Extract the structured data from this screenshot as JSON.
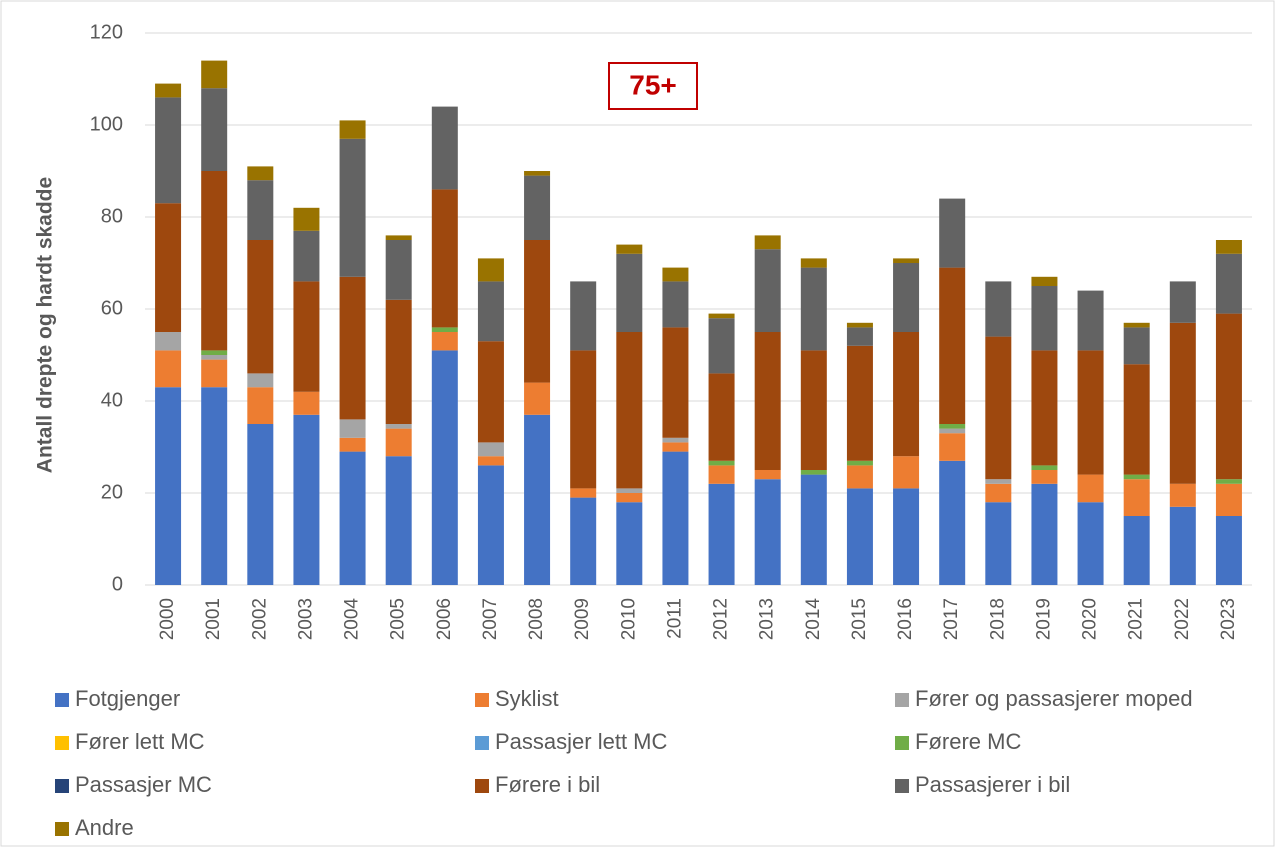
{
  "chart_data": {
    "type": "stacked_bar",
    "annotation": "75+",
    "y_label": "Antall drepte og hardt skadde",
    "categories": [
      "2000",
      "2001",
      "2002",
      "2003",
      "2004",
      "2005",
      "2006",
      "2007",
      "2008",
      "2009",
      "2010",
      "2011",
      "2012",
      "2013",
      "2014",
      "2015",
      "2016",
      "2017",
      "2018",
      "2019",
      "2020",
      "2021",
      "2022",
      "2023"
    ],
    "ylim": [
      0,
      120
    ],
    "yticks": [
      0,
      20,
      40,
      60,
      80,
      100,
      120
    ],
    "grid": true,
    "series": [
      {
        "name": "Fotgjenger",
        "color": "#4472c4",
        "values": [
          43,
          43,
          35,
          37,
          29,
          28,
          51,
          26,
          37,
          19,
          18,
          29,
          22,
          23,
          24,
          21,
          21,
          27,
          18,
          22,
          18,
          15,
          17,
          15
        ]
      },
      {
        "name": "Syklist",
        "color": "#ed7d31",
        "values": [
          8,
          6,
          8,
          5,
          3,
          6,
          4,
          2,
          7,
          2,
          2,
          2,
          4,
          2,
          0,
          5,
          7,
          6,
          4,
          3,
          6,
          8,
          5,
          7
        ]
      },
      {
        "name": "Fører og passasjerer moped",
        "color": "#a5a5a5",
        "values": [
          4,
          1,
          3,
          0,
          4,
          1,
          0,
          3,
          0,
          0,
          1,
          1,
          0,
          0,
          0,
          0,
          0,
          1,
          1,
          0,
          0,
          0,
          0,
          0
        ]
      },
      {
        "name": "Fører lett MC",
        "color": "#ffc000",
        "values": [
          0,
          0,
          0,
          0,
          0,
          0,
          0,
          0,
          0,
          0,
          0,
          0,
          0,
          0,
          0,
          0,
          0,
          0,
          0,
          0,
          0,
          0,
          0,
          0
        ]
      },
      {
        "name": "Passasjer lett MC",
        "color": "#5b9bd5",
        "values": [
          0,
          0,
          0,
          0,
          0,
          0,
          0,
          0,
          0,
          0,
          0,
          0,
          0,
          0,
          0,
          0,
          0,
          0,
          0,
          0,
          0,
          0,
          0,
          0
        ]
      },
      {
        "name": "Førere MC",
        "color": "#70ad47",
        "values": [
          0,
          1,
          0,
          0,
          0,
          0,
          1,
          0,
          0,
          0,
          0,
          0,
          1,
          0,
          1,
          1,
          0,
          1,
          0,
          1,
          0,
          1,
          0,
          1
        ]
      },
      {
        "name": "Passasjer MC",
        "color": "#264478",
        "values": [
          0,
          0,
          0,
          0,
          0,
          0,
          0,
          0,
          0,
          0,
          0,
          0,
          0,
          0,
          0,
          0,
          0,
          0,
          0,
          0,
          0,
          0,
          0,
          0
        ]
      },
      {
        "name": "Førere i bil",
        "color": "#9e480e",
        "values": [
          28,
          39,
          29,
          24,
          31,
          27,
          30,
          22,
          31,
          30,
          34,
          24,
          19,
          30,
          26,
          25,
          27,
          34,
          31,
          25,
          27,
          24,
          35,
          36
        ]
      },
      {
        "name": "Passasjerer i bil",
        "color": "#636363",
        "values": [
          23,
          18,
          13,
          11,
          30,
          13,
          18,
          13,
          14,
          15,
          17,
          10,
          12,
          18,
          18,
          4,
          15,
          15,
          12,
          14,
          13,
          8,
          9,
          13
        ]
      },
      {
        "name": "Andre",
        "color": "#997300",
        "values": [
          3,
          6,
          3,
          5,
          4,
          1,
          0,
          5,
          1,
          0,
          2,
          3,
          1,
          3,
          2,
          1,
          1,
          0,
          0,
          2,
          0,
          1,
          0,
          3
        ]
      }
    ]
  }
}
